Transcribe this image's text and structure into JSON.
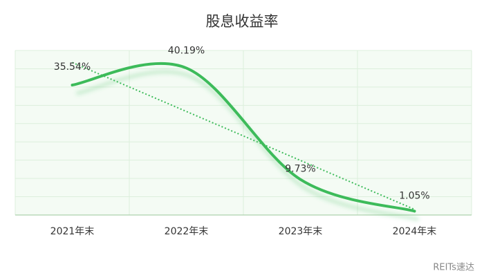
{
  "chart_data": {
    "type": "line",
    "title": "股息收益率",
    "categories": [
      "2021年末",
      "2022年末",
      "2023年末",
      "2024年末"
    ],
    "series": [
      {
        "color": "#3dbb5a",
        "values": [
          35.54,
          40.19,
          9.73,
          1.05
        ],
        "value_labels": [
          "35.54%",
          "40.19%",
          "9.73%",
          "1.05%"
        ]
      }
    ],
    "ylim": [
      0,
      45
    ],
    "grid": true,
    "smooth": true,
    "trendline": "linear",
    "watermark": "REITs速达"
  }
}
